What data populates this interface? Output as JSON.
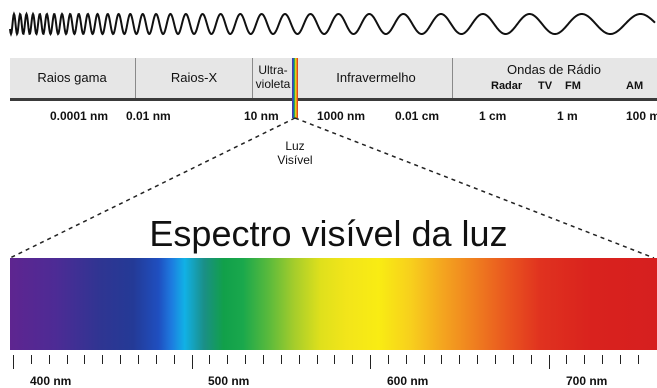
{
  "regions": {
    "gamma": "Raios gama",
    "xray": "Raios-X",
    "uv_line1": "Ultra-",
    "uv_line2": "violeta",
    "infrared": "Infravermelho",
    "radio": "Ondas de Rádio",
    "radar": "Radar",
    "tv": "TV",
    "fm": "FM",
    "am": "AM"
  },
  "scale_labels": [
    "0.0001 nm",
    "0.01 nm",
    "10 nm",
    "1000 nm",
    "0.01 cm",
    "1 cm",
    "1 m",
    "100 m"
  ],
  "visible_light": {
    "line1": "Luz",
    "line2": "Visível"
  },
  "title": "Espectro visível da luz",
  "spectrum_labels": [
    "400 nm",
    "500 nm",
    "600 nm",
    "700 nm"
  ]
}
